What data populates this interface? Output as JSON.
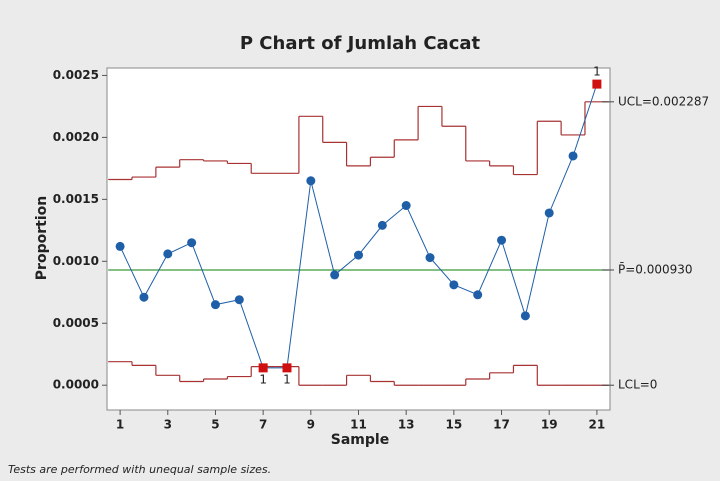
{
  "chart_data": {
    "type": "p_chart",
    "title": "P Chart of Jumlah Cacat",
    "x_label": "Sample",
    "y_label": "Proportion",
    "footnote": "Tests are performed with unequal sample sizes.",
    "x": [
      1,
      2,
      3,
      4,
      5,
      6,
      7,
      8,
      9,
      10,
      11,
      12,
      13,
      14,
      15,
      16,
      17,
      18,
      19,
      20,
      21
    ],
    "values": [
      0.00112,
      0.00071,
      0.00106,
      0.00115,
      0.00065,
      0.00069,
      0.00014,
      0.00014,
      0.00165,
      0.00089,
      0.00105,
      0.00129,
      0.00145,
      0.00103,
      0.00081,
      0.00073,
      0.00117,
      0.00056,
      0.00139,
      0.00185,
      0.00243
    ],
    "color": "#1f5fa8",
    "ucl": [
      0.00166,
      0.00168,
      0.00176,
      0.00182,
      0.00181,
      0.00179,
      0.00171,
      0.00171,
      0.00217,
      0.00196,
      0.00177,
      0.00184,
      0.00198,
      0.00225,
      0.00209,
      0.00181,
      0.00177,
      0.0017,
      0.00213,
      0.00202,
      0.002287
    ],
    "lcl": [
      0.00019,
      0.00016,
      8e-05,
      3e-05,
      5e-05,
      7e-05,
      0.00015,
      0.00015,
      0,
      0,
      8e-05,
      3e-05,
      0,
      0,
      0,
      5e-05,
      0.0001,
      0.00016,
      0,
      0,
      0
    ],
    "limit_color": "#a83232",
    "center": 0.00093,
    "center_color": "#3a9a3a",
    "limit_labels": {
      "ucl": "UCL=0.002287",
      "center": "P̄=0.000930",
      "lcl": "LCL=0"
    },
    "annotations": [
      {
        "x": 7,
        "text": "1"
      },
      {
        "x": 8,
        "text": "1"
      },
      {
        "x": 21,
        "text": "1"
      }
    ],
    "flag_color": "#d01010",
    "xlim": [
      0.45,
      21.55
    ],
    "ylim": [
      -0.0002,
      0.00256
    ],
    "xticks": [
      1,
      3,
      5,
      7,
      9,
      11,
      13,
      15,
      17,
      19,
      21
    ],
    "yticks": [
      {
        "value": 0,
        "label": "0.0000"
      },
      {
        "value": 0.0005,
        "label": "0.0005"
      },
      {
        "value": 0.001,
        "label": "0.0010"
      },
      {
        "value": 0.0015,
        "label": "0.0015"
      },
      {
        "value": 0.002,
        "label": "0.0020"
      },
      {
        "value": 0.0025,
        "label": "0.0025"
      }
    ]
  }
}
